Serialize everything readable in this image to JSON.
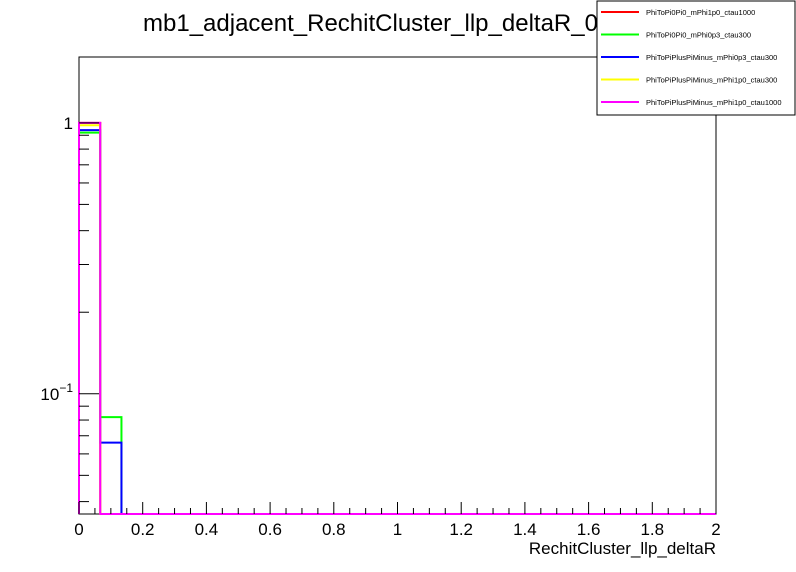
{
  "chart_data": {
    "type": "histogram",
    "title": "mb1_adjacent_RechitCluster_llp_deltaR_0",
    "xlabel": "RechitCluster_llp_deltaR",
    "ylabel": "",
    "xlim": [
      0,
      2
    ],
    "ylim": [
      0.036,
      1.75
    ],
    "yscale": "log",
    "grid": false,
    "legend_position": "top-right",
    "x_tick_labels": [
      "0",
      "0.2",
      "0.4",
      "0.6",
      "0.8",
      "1",
      "1.2",
      "1.4",
      "1.6",
      "1.8",
      "2"
    ],
    "y_tick_labels": [
      {
        "value": 1,
        "base": "1",
        "exp": ""
      },
      {
        "value": 0.1,
        "base": "10",
        "exp": "−1"
      }
    ],
    "bin_edges": [
      0,
      0.0667,
      0.1333,
      0.2,
      2.0
    ],
    "series": [
      {
        "name": "PhiToPi0Pi0_mPhi1p0_ctau1000",
        "color": "#ff0000",
        "values": [
          1.0,
          0.0,
          0.0,
          0.0
        ]
      },
      {
        "name": "PhiToPi0Pi0_mPhi0p3_ctau300",
        "color": "#00ff00",
        "values": [
          0.92,
          0.082,
          0.0,
          0.0
        ]
      },
      {
        "name": "PhiToPiPlusPiMinus_mPhi0p3_ctau300",
        "color": "#0000ff",
        "values": [
          0.94,
          0.066,
          0.0,
          0.0
        ]
      },
      {
        "name": "PhiToPiPlusPiMinus_mPhi1p0_ctau300",
        "color": "#ffff00",
        "values": [
          0.98,
          0.0,
          0.0,
          0.0
        ]
      },
      {
        "name": "PhiToPiPlusPiMinus_mPhi1p0_ctau1000",
        "color": "#ff00ff",
        "values": [
          1.0,
          0.0,
          0.0,
          0.0
        ]
      }
    ]
  }
}
